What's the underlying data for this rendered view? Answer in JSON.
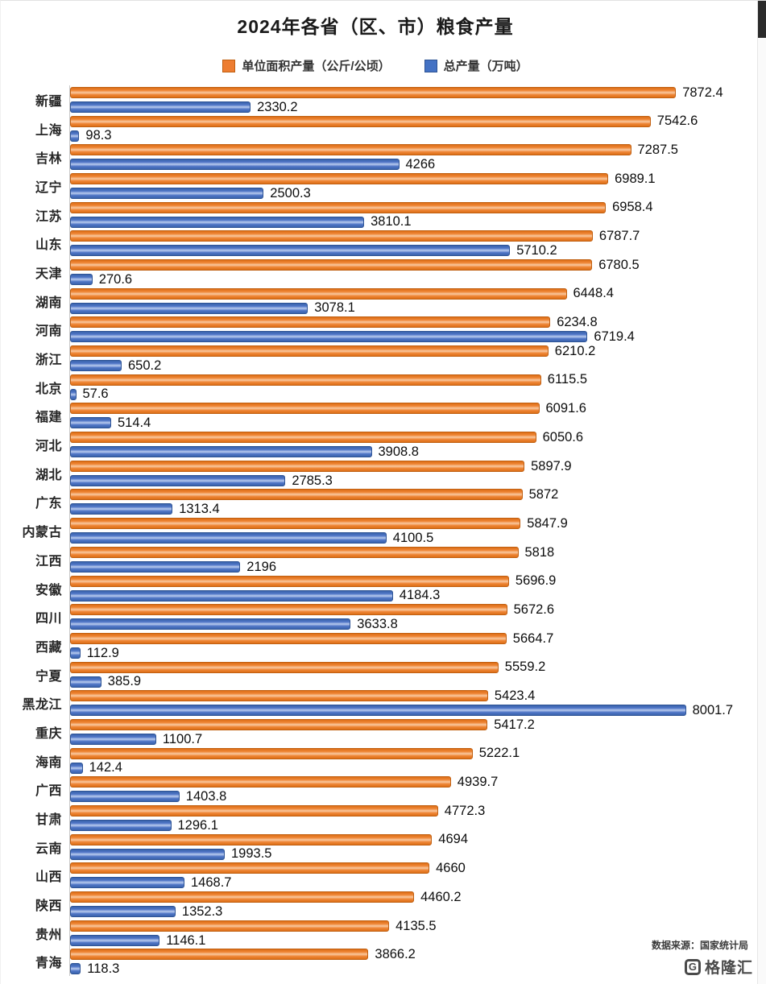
{
  "title": "2024年各省（区、市）粮食产量",
  "legend": [
    {
      "label": "单位面积产量（公斤/公顷）",
      "color": "#ed7d31"
    },
    {
      "label": "总产量（万吨）",
      "color": "#4472c4"
    }
  ],
  "source_note": "数据来源：国家统计局",
  "logo": {
    "text": "格隆汇",
    "mark": "G"
  },
  "chart_data": {
    "type": "bar",
    "orientation": "horizontal",
    "title": "2024年各省（区、市）粮食产量",
    "xlabel": "",
    "ylabel": "",
    "xlim": [
      0,
      8900
    ],
    "grid": false,
    "legend_position": "top",
    "categories": [
      "新疆",
      "上海",
      "吉林",
      "辽宁",
      "江苏",
      "山东",
      "天津",
      "湖南",
      "河南",
      "浙江",
      "北京",
      "福建",
      "河北",
      "湖北",
      "广东",
      "内蒙古",
      "江西",
      "安徽",
      "四川",
      "西藏",
      "宁夏",
      "黑龙江",
      "重庆",
      "海南",
      "广西",
      "甘肃",
      "云南",
      "山西",
      "陕西",
      "贵州",
      "青海"
    ],
    "series": [
      {
        "name": "单位面积产量（公斤/公顷）",
        "color": "#ed7d31",
        "values": [
          7872.4,
          7542.6,
          7287.5,
          6989.1,
          6958.4,
          6787.7,
          6780.5,
          6448.4,
          6234.8,
          6210.2,
          6115.5,
          6091.6,
          6050.6,
          5897.9,
          5872,
          5847.9,
          5818,
          5696.9,
          5672.6,
          5664.7,
          5559.2,
          5423.4,
          5417.2,
          5222.1,
          4939.7,
          4772.3,
          4694,
          4660,
          4460.2,
          4135.5,
          3866.2
        ]
      },
      {
        "name": "总产量（万吨）",
        "color": "#4472c4",
        "values": [
          2330.2,
          98.3,
          4266,
          2500.3,
          3810.1,
          5710.2,
          270.6,
          3078.1,
          6719.4,
          650.2,
          57.6,
          514.4,
          3908.8,
          2785.3,
          1313.4,
          4100.5,
          2196,
          4184.3,
          3633.8,
          112.9,
          385.9,
          8001.7,
          1100.7,
          142.4,
          1403.8,
          1296.1,
          1993.5,
          1468.7,
          1352.3,
          1146.1,
          118.3
        ]
      }
    ]
  }
}
